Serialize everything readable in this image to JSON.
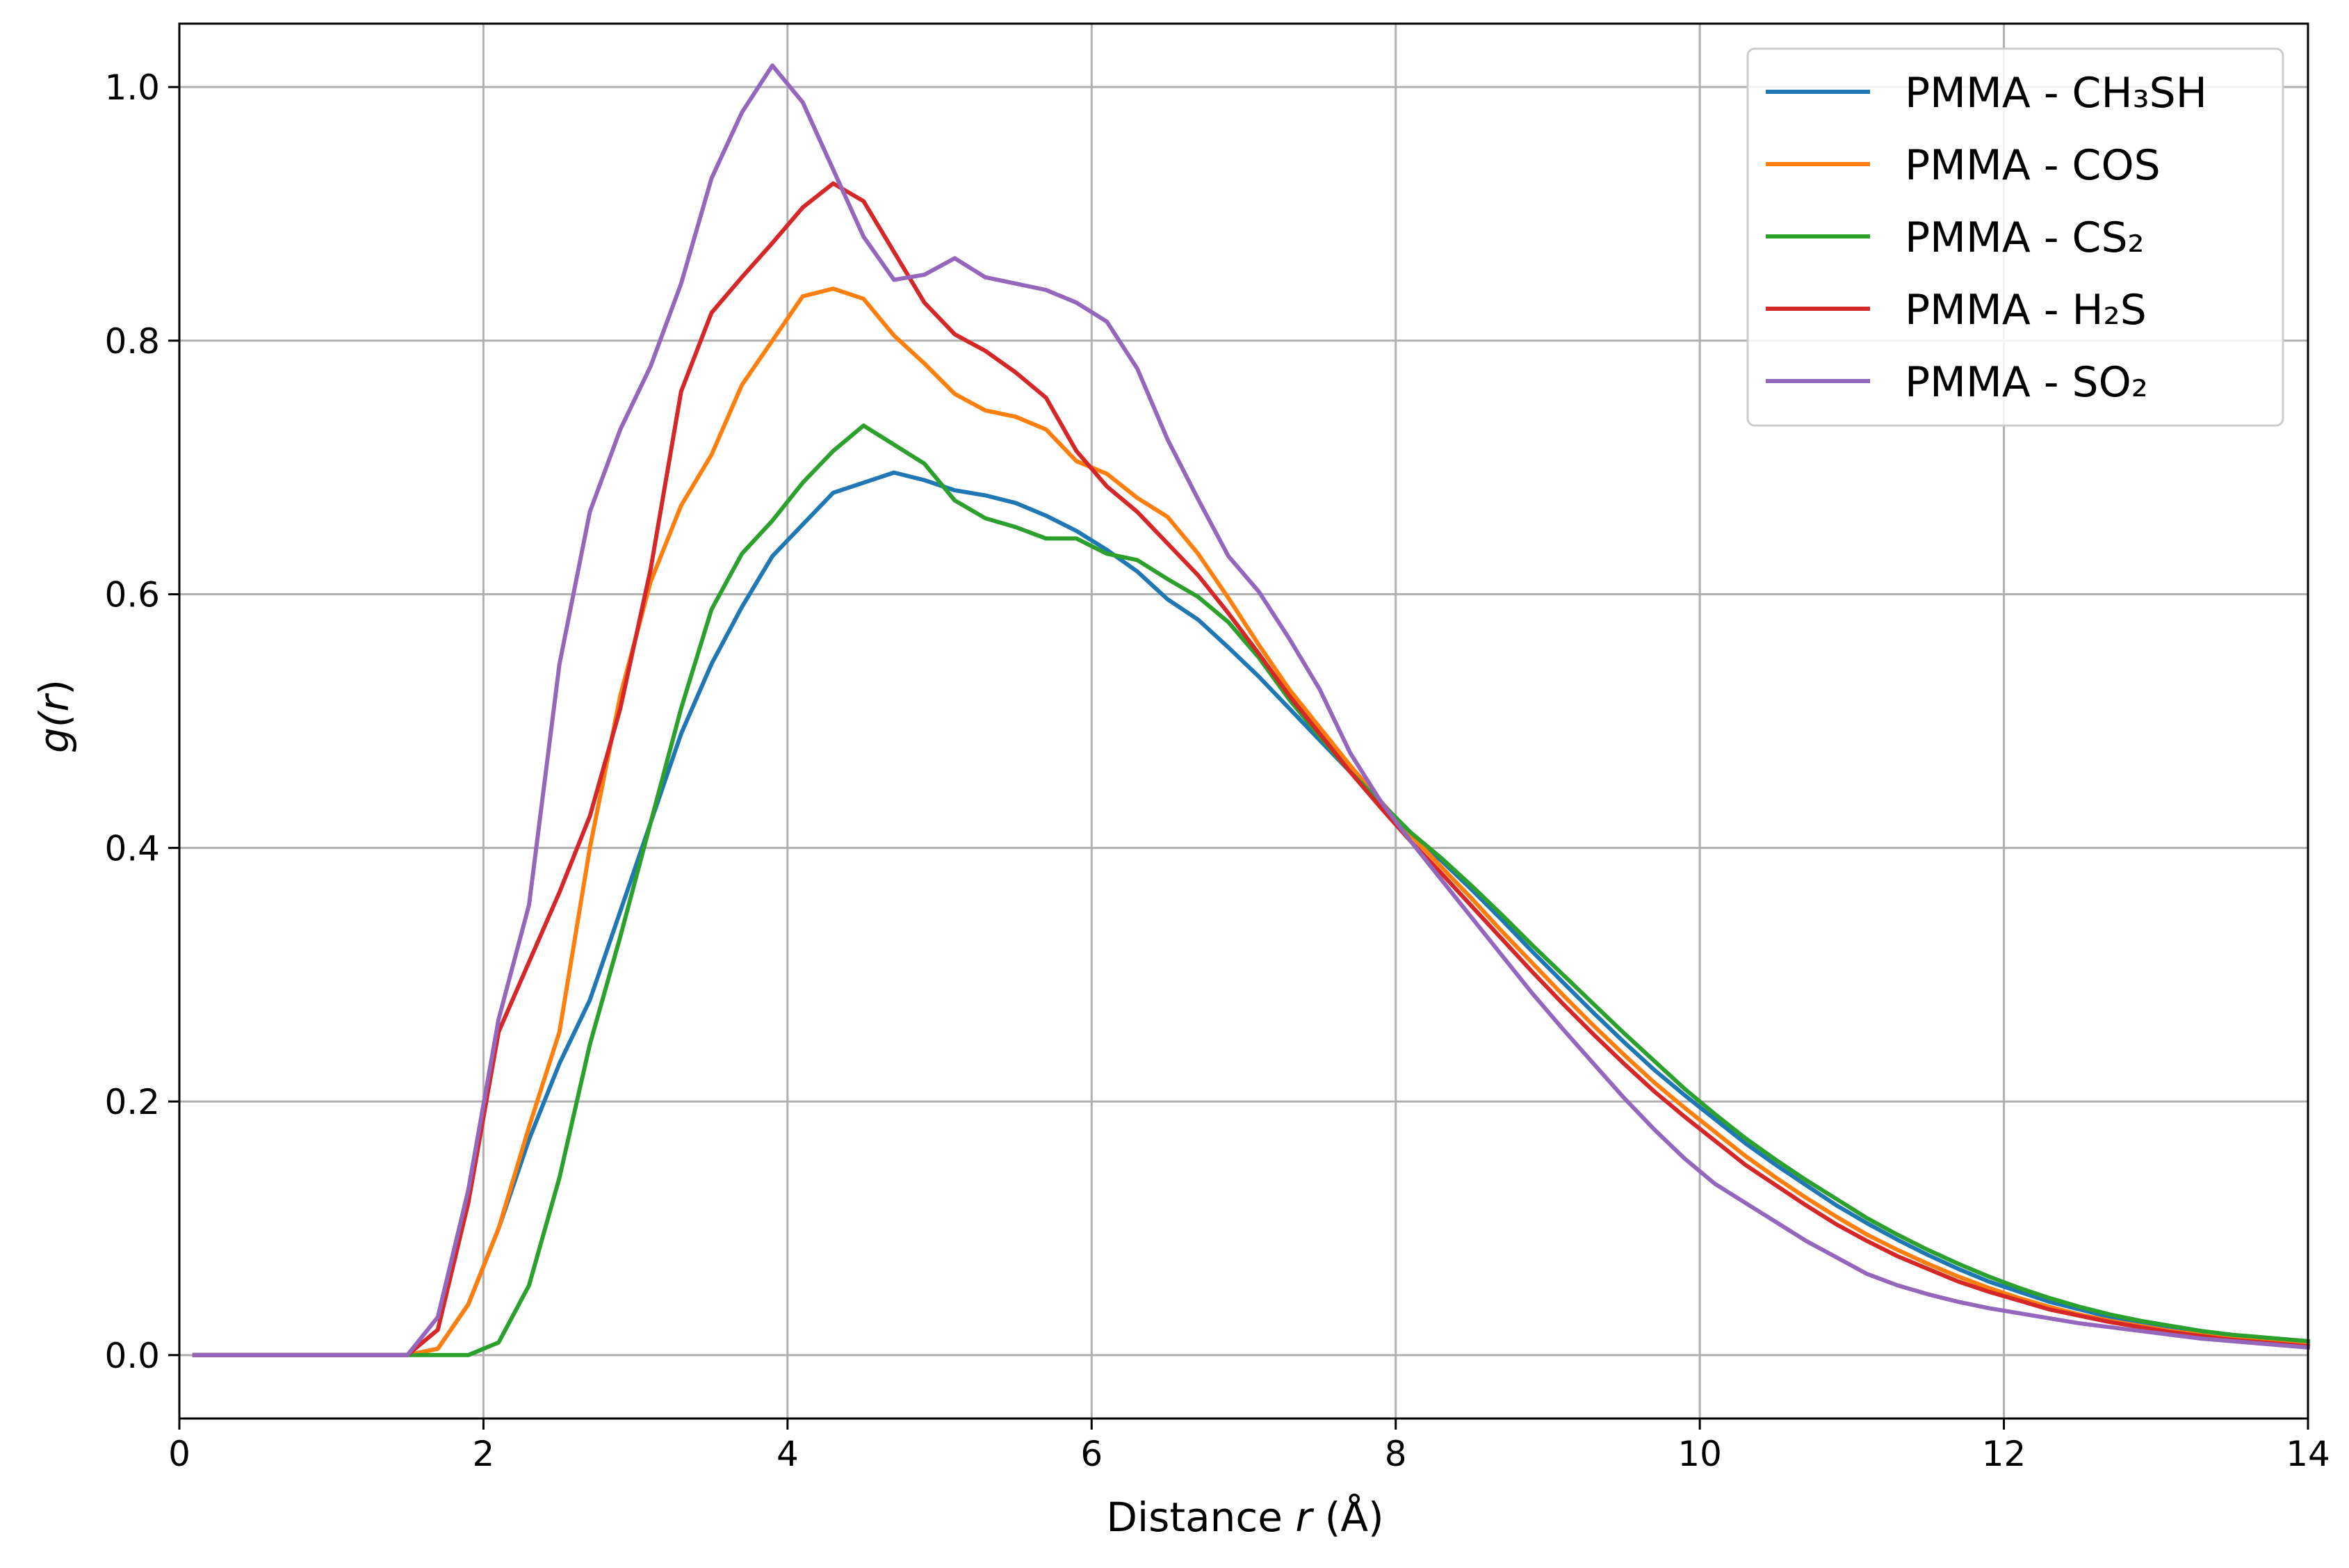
{
  "chart_data": {
    "type": "line",
    "xlabel_prefix": "Distance ",
    "xlabel_var": "r",
    "xlabel_suffix": " (Å)",
    "ylabel_prefix": "g(",
    "ylabel_var": "r",
    "ylabel_suffix": ")",
    "xlim": [
      0,
      14
    ],
    "ylim": [
      -0.05,
      1.05
    ],
    "xticks": [
      0,
      2,
      4,
      6,
      8,
      10,
      12,
      14
    ],
    "xtick_labels": [
      "0",
      "2",
      "4",
      "6",
      "8",
      "10",
      "12",
      "14"
    ],
    "yticks": [
      0.0,
      0.2,
      0.4,
      0.6,
      0.8,
      1.0
    ],
    "ytick_labels": [
      "0.0",
      "0.2",
      "0.4",
      "0.6",
      "0.8",
      "1.0"
    ],
    "grid": true,
    "legend_position": "top-right",
    "series": [
      {
        "name": "PMMA - CH₃SH",
        "color": "#1f77b4",
        "x": [
          0.1,
          1.5,
          1.7,
          1.9,
          2.1,
          2.3,
          2.5,
          2.7,
          2.9,
          3.1,
          3.3,
          3.5,
          3.7,
          3.9,
          4.1,
          4.3,
          4.5,
          4.7,
          4.9,
          5.1,
          5.3,
          5.5,
          5.7,
          5.9,
          6.1,
          6.3,
          6.5,
          6.7,
          6.9,
          7.1,
          7.3,
          7.5,
          7.7,
          7.9,
          8.1,
          8.3,
          8.5,
          8.7,
          8.9,
          9.1,
          9.3,
          9.5,
          9.7,
          9.9,
          10.1,
          10.3,
          10.5,
          10.7,
          10.9,
          11.1,
          11.3,
          11.5,
          11.7,
          11.9,
          12.1,
          12.3,
          12.5,
          12.7,
          12.9,
          13.1,
          13.3,
          13.5,
          13.7,
          14.0
        ],
        "y": [
          0.0,
          0.0,
          0.005,
          0.04,
          0.1,
          0.17,
          0.23,
          0.28,
          0.35,
          0.42,
          0.49,
          0.545,
          0.59,
          0.63,
          0.655,
          0.68,
          0.688,
          0.696,
          0.69,
          0.682,
          0.678,
          0.672,
          0.662,
          0.65,
          0.635,
          0.618,
          0.596,
          0.58,
          0.558,
          0.535,
          0.51,
          0.485,
          0.46,
          0.435,
          0.41,
          0.39,
          0.367,
          0.343,
          0.318,
          0.294,
          0.27,
          0.247,
          0.225,
          0.205,
          0.186,
          0.167,
          0.15,
          0.134,
          0.118,
          0.104,
          0.091,
          0.079,
          0.068,
          0.058,
          0.05,
          0.042,
          0.036,
          0.03,
          0.025,
          0.021,
          0.018,
          0.015,
          0.013,
          0.01
        ]
      },
      {
        "name": "PMMA - COS",
        "color": "#ff7f0e",
        "x": [
          0.1,
          1.5,
          1.7,
          1.9,
          2.1,
          2.3,
          2.5,
          2.7,
          2.9,
          3.1,
          3.3,
          3.5,
          3.7,
          3.9,
          4.1,
          4.3,
          4.5,
          4.7,
          4.9,
          5.1,
          5.3,
          5.5,
          5.7,
          5.9,
          6.1,
          6.3,
          6.5,
          6.7,
          6.9,
          7.1,
          7.3,
          7.5,
          7.7,
          7.9,
          8.1,
          8.3,
          8.5,
          8.7,
          8.9,
          9.1,
          9.3,
          9.5,
          9.7,
          9.9,
          10.1,
          10.3,
          10.5,
          10.7,
          10.9,
          11.1,
          11.3,
          11.5,
          11.7,
          11.9,
          12.1,
          12.3,
          12.5,
          12.7,
          12.9,
          13.1,
          13.3,
          13.5,
          13.7,
          14.0
        ],
        "y": [
          0.0,
          0.0,
          0.005,
          0.04,
          0.1,
          0.18,
          0.255,
          0.4,
          0.52,
          0.61,
          0.67,
          0.71,
          0.765,
          0.8,
          0.835,
          0.841,
          0.833,
          0.804,
          0.782,
          0.758,
          0.745,
          0.74,
          0.73,
          0.705,
          0.695,
          0.676,
          0.661,
          0.632,
          0.597,
          0.56,
          0.525,
          0.495,
          0.465,
          0.437,
          0.41,
          0.385,
          0.36,
          0.334,
          0.309,
          0.284,
          0.26,
          0.237,
          0.215,
          0.195,
          0.176,
          0.157,
          0.14,
          0.124,
          0.109,
          0.095,
          0.083,
          0.072,
          0.062,
          0.053,
          0.045,
          0.038,
          0.032,
          0.027,
          0.023,
          0.019,
          0.016,
          0.013,
          0.011,
          0.008
        ]
      },
      {
        "name": "PMMA - CS₂",
        "color": "#2ca02c",
        "x": [
          0.1,
          1.5,
          1.7,
          1.9,
          2.1,
          2.3,
          2.5,
          2.7,
          2.9,
          3.1,
          3.3,
          3.5,
          3.7,
          3.9,
          4.1,
          4.3,
          4.5,
          4.7,
          4.9,
          5.1,
          5.3,
          5.5,
          5.7,
          5.9,
          6.1,
          6.3,
          6.5,
          6.7,
          6.9,
          7.1,
          7.3,
          7.5,
          7.7,
          7.9,
          8.1,
          8.3,
          8.5,
          8.7,
          8.9,
          9.1,
          9.3,
          9.5,
          9.7,
          9.9,
          10.1,
          10.3,
          10.5,
          10.7,
          10.9,
          11.1,
          11.3,
          11.5,
          11.7,
          11.9,
          12.1,
          12.3,
          12.5,
          12.7,
          12.9,
          13.1,
          13.3,
          13.5,
          13.7,
          14.0
        ],
        "y": [
          0.0,
          0.0,
          0.0,
          0.0,
          0.01,
          0.055,
          0.14,
          0.245,
          0.33,
          0.42,
          0.51,
          0.588,
          0.632,
          0.658,
          0.688,
          0.713,
          0.733,
          0.718,
          0.703,
          0.674,
          0.66,
          0.653,
          0.644,
          0.644,
          0.632,
          0.627,
          0.612,
          0.598,
          0.578,
          0.55,
          0.517,
          0.488,
          0.46,
          0.436,
          0.412,
          0.392,
          0.37,
          0.347,
          0.323,
          0.3,
          0.277,
          0.254,
          0.232,
          0.21,
          0.19,
          0.171,
          0.154,
          0.138,
          0.123,
          0.108,
          0.095,
          0.083,
          0.072,
          0.062,
          0.053,
          0.045,
          0.038,
          0.032,
          0.027,
          0.023,
          0.019,
          0.016,
          0.014,
          0.011
        ]
      },
      {
        "name": "PMMA - H₂S",
        "color": "#d62728",
        "x": [
          0.1,
          1.5,
          1.7,
          1.9,
          2.1,
          2.3,
          2.5,
          2.7,
          2.9,
          3.1,
          3.3,
          3.5,
          3.7,
          3.9,
          4.1,
          4.3,
          4.5,
          4.7,
          4.9,
          5.1,
          5.3,
          5.5,
          5.7,
          5.9,
          6.1,
          6.3,
          6.5,
          6.7,
          6.9,
          7.1,
          7.3,
          7.5,
          7.7,
          7.9,
          8.1,
          8.3,
          8.5,
          8.7,
          8.9,
          9.1,
          9.3,
          9.5,
          9.7,
          9.9,
          10.1,
          10.3,
          10.5,
          10.7,
          10.9,
          11.1,
          11.3,
          11.5,
          11.7,
          11.9,
          12.1,
          12.3,
          12.5,
          12.7,
          12.9,
          13.1,
          13.3,
          13.5,
          13.7,
          14.0
        ],
        "y": [
          0.0,
          0.0,
          0.02,
          0.12,
          0.255,
          0.31,
          0.365,
          0.425,
          0.51,
          0.62,
          0.76,
          0.822,
          0.85,
          0.877,
          0.905,
          0.924,
          0.91,
          0.87,
          0.83,
          0.805,
          0.792,
          0.775,
          0.755,
          0.713,
          0.685,
          0.665,
          0.64,
          0.615,
          0.585,
          0.553,
          0.52,
          0.49,
          0.46,
          0.432,
          0.405,
          0.38,
          0.354,
          0.328,
          0.302,
          0.277,
          0.253,
          0.23,
          0.208,
          0.188,
          0.169,
          0.15,
          0.134,
          0.118,
          0.103,
          0.09,
          0.078,
          0.068,
          0.058,
          0.05,
          0.043,
          0.036,
          0.031,
          0.026,
          0.022,
          0.018,
          0.015,
          0.012,
          0.01,
          0.007
        ]
      },
      {
        "name": "PMMA - SO₂",
        "color": "#9467bd",
        "x": [
          0.1,
          1.5,
          1.7,
          1.9,
          2.1,
          2.3,
          2.5,
          2.7,
          2.9,
          3.1,
          3.3,
          3.5,
          3.7,
          3.9,
          4.1,
          4.3,
          4.5,
          4.7,
          4.9,
          5.1,
          5.3,
          5.5,
          5.7,
          5.9,
          6.1,
          6.3,
          6.5,
          6.7,
          6.9,
          7.1,
          7.3,
          7.5,
          7.7,
          7.9,
          8.1,
          8.3,
          8.5,
          8.7,
          8.9,
          9.1,
          9.3,
          9.5,
          9.7,
          9.9,
          10.1,
          10.3,
          10.5,
          10.7,
          10.9,
          11.1,
          11.3,
          11.5,
          11.7,
          11.9,
          12.1,
          12.3,
          12.5,
          12.7,
          12.9,
          13.1,
          13.3,
          13.5,
          13.7,
          14.0
        ],
        "y": [
          0.0,
          0.0,
          0.03,
          0.13,
          0.265,
          0.355,
          0.545,
          0.665,
          0.73,
          0.78,
          0.845,
          0.928,
          0.98,
          1.017,
          0.988,
          0.935,
          0.882,
          0.848,
          0.852,
          0.865,
          0.85,
          0.845,
          0.84,
          0.83,
          0.815,
          0.778,
          0.722,
          0.675,
          0.63,
          0.602,
          0.565,
          0.525,
          0.475,
          0.437,
          0.405,
          0.375,
          0.345,
          0.315,
          0.285,
          0.257,
          0.23,
          0.203,
          0.178,
          0.155,
          0.135,
          0.12,
          0.105,
          0.09,
          0.077,
          0.064,
          0.055,
          0.048,
          0.042,
          0.037,
          0.033,
          0.029,
          0.025,
          0.022,
          0.019,
          0.016,
          0.013,
          0.011,
          0.009,
          0.006
        ]
      }
    ]
  }
}
